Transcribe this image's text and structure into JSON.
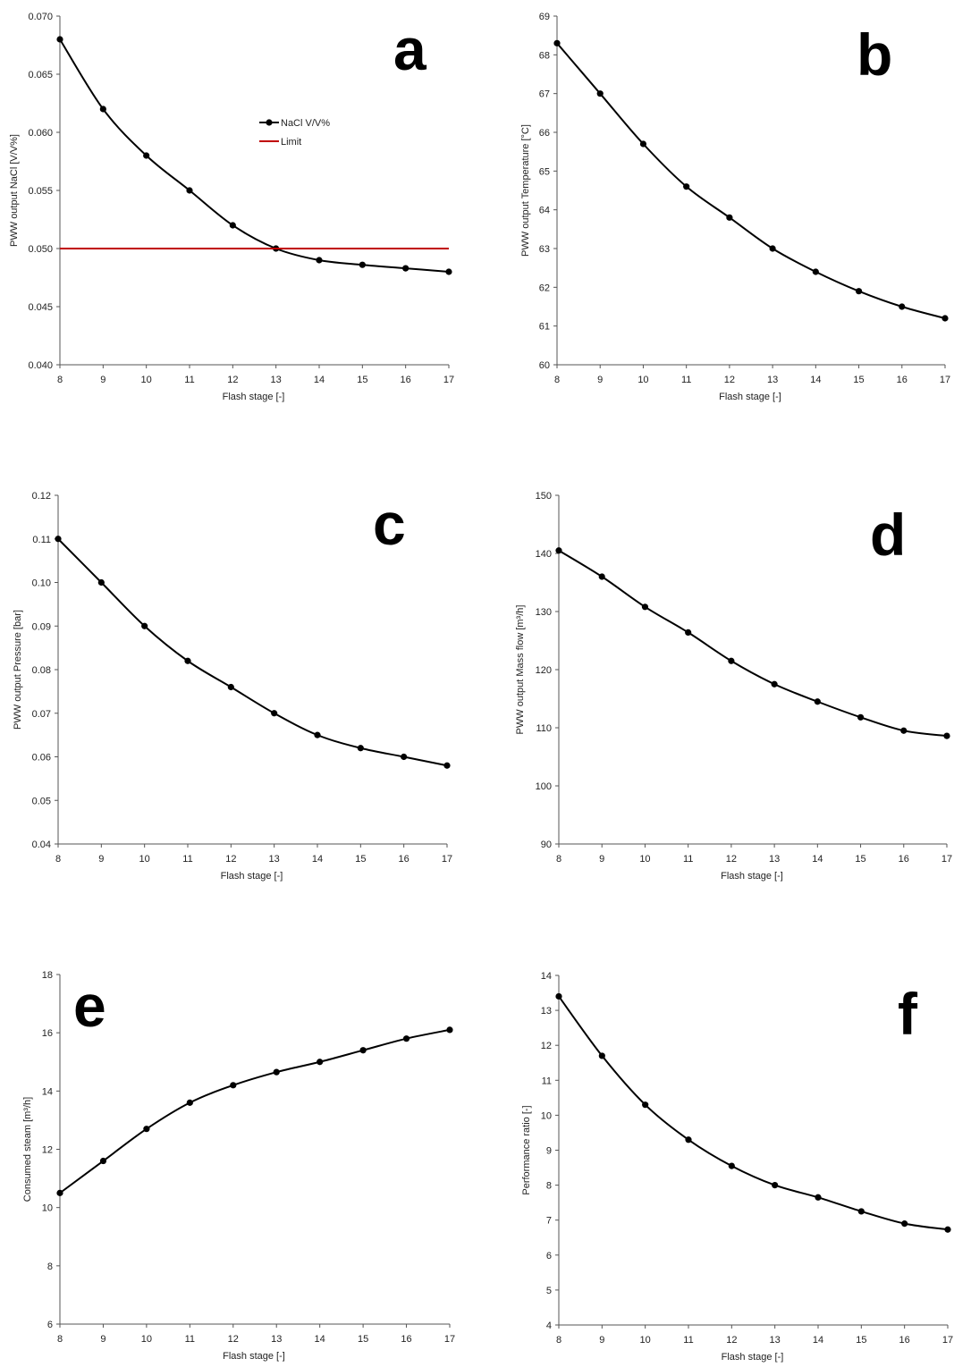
{
  "chart_data": [
    {
      "type": "line",
      "panel_label": "a",
      "xlabel": "Flash stage [-]",
      "ylabel": "PWW output NaCl [V/V%]",
      "x": [
        8,
        9,
        10,
        11,
        12,
        13,
        14,
        15,
        16,
        17
      ],
      "xticks": [
        "8",
        "9",
        "10",
        "11",
        "12",
        "13",
        "14",
        "15",
        "16",
        "17"
      ],
      "ylim": [
        0.04,
        0.07
      ],
      "yticks": [
        "0.040",
        "0.045",
        "0.050",
        "0.055",
        "0.060",
        "0.065",
        "0.070"
      ],
      "series": [
        {
          "name": "NaCl V/V%",
          "values": [
            0.068,
            0.062,
            0.058,
            0.055,
            0.052,
            0.05,
            0.049,
            0.0486,
            0.0483,
            0.048
          ],
          "color": "#000000",
          "markers": true
        },
        {
          "name": "Limit",
          "values": [
            0.05,
            0.05,
            0.05,
            0.05,
            0.05,
            0.05,
            0.05,
            0.05,
            0.05,
            0.05
          ],
          "color": "#c00000",
          "markers": false
        }
      ],
      "legend": "center"
    },
    {
      "type": "line",
      "panel_label": "b",
      "xlabel": "Flash stage [-]",
      "ylabel": "PWW output Temperature [°C]",
      "x": [
        8,
        9,
        10,
        11,
        12,
        13,
        14,
        15,
        16,
        17
      ],
      "xticks": [
        "8",
        "9",
        "10",
        "11",
        "12",
        "13",
        "14",
        "15",
        "16",
        "17"
      ],
      "ylim": [
        60,
        69
      ],
      "yticks": [
        "60",
        "61",
        "62",
        "63",
        "64",
        "65",
        "66",
        "67",
        "68",
        "69"
      ],
      "series": [
        {
          "values": [
            68.3,
            67.0,
            65.7,
            64.6,
            63.8,
            63.0,
            62.4,
            61.9,
            61.5,
            61.2
          ],
          "color": "#000000",
          "markers": true
        }
      ]
    },
    {
      "type": "line",
      "panel_label": "c",
      "xlabel": "Flash stage [-]",
      "ylabel": "PWW output Pressure [bar]",
      "x": [
        8,
        9,
        10,
        11,
        12,
        13,
        14,
        15,
        16,
        17
      ],
      "xticks": [
        "8",
        "9",
        "10",
        "11",
        "12",
        "13",
        "14",
        "15",
        "16",
        "17"
      ],
      "ylim": [
        0.04,
        0.12
      ],
      "yticks": [
        "0.04",
        "0.05",
        "0.06",
        "0.07",
        "0.08",
        "0.09",
        "0.10",
        "0.11",
        "0.12"
      ],
      "series": [
        {
          "values": [
            0.11,
            0.1,
            0.09,
            0.082,
            0.076,
            0.07,
            0.065,
            0.062,
            0.06,
            0.058
          ],
          "color": "#000000",
          "markers": true
        }
      ]
    },
    {
      "type": "line",
      "panel_label": "d",
      "xlabel": "Flash stage [-]",
      "ylabel": "PWW output Mass flow [m³/h]",
      "x": [
        8,
        9,
        10,
        11,
        12,
        13,
        14,
        15,
        16,
        17
      ],
      "xticks": [
        "8",
        "9",
        "10",
        "11",
        "12",
        "13",
        "14",
        "15",
        "16",
        "17"
      ],
      "ylim": [
        90,
        150
      ],
      "yticks": [
        "90",
        "100",
        "110",
        "120",
        "130",
        "140",
        "150"
      ],
      "series": [
        {
          "values": [
            140.5,
            136.0,
            130.8,
            126.4,
            121.5,
            117.5,
            114.5,
            111.8,
            109.5,
            108.6
          ],
          "color": "#000000",
          "markers": true
        }
      ]
    },
    {
      "type": "line",
      "panel_label": "e",
      "xlabel": "Flash stage [-]",
      "ylabel": "Consumed steam [m³/h]",
      "x": [
        8,
        9,
        10,
        11,
        12,
        13,
        14,
        15,
        16,
        17
      ],
      "xticks": [
        "8",
        "9",
        "10",
        "11",
        "12",
        "13",
        "14",
        "15",
        "16",
        "17"
      ],
      "ylim": [
        6,
        18
      ],
      "yticks": [
        "6",
        "8",
        "10",
        "12",
        "14",
        "16",
        "18"
      ],
      "series": [
        {
          "values": [
            10.5,
            11.6,
            12.7,
            13.6,
            14.2,
            14.65,
            15.0,
            15.4,
            15.8,
            16.1
          ],
          "color": "#000000",
          "markers": true
        }
      ]
    },
    {
      "type": "line",
      "panel_label": "f",
      "xlabel": "Flash stage [-]",
      "ylabel": "Performance ratio [-]",
      "x": [
        8,
        9,
        10,
        11,
        12,
        13,
        14,
        15,
        16,
        17
      ],
      "xticks": [
        "8",
        "9",
        "10",
        "11",
        "12",
        "13",
        "14",
        "15",
        "16",
        "17"
      ],
      "ylim": [
        4,
        14
      ],
      "yticks": [
        "4",
        "5",
        "6",
        "7",
        "8",
        "9",
        "10",
        "11",
        "12",
        "13",
        "14"
      ],
      "series": [
        {
          "values": [
            13.4,
            11.7,
            10.3,
            9.3,
            8.55,
            8.0,
            7.65,
            7.25,
            6.9,
            6.73
          ],
          "color": "#000000",
          "markers": true
        }
      ]
    }
  ]
}
